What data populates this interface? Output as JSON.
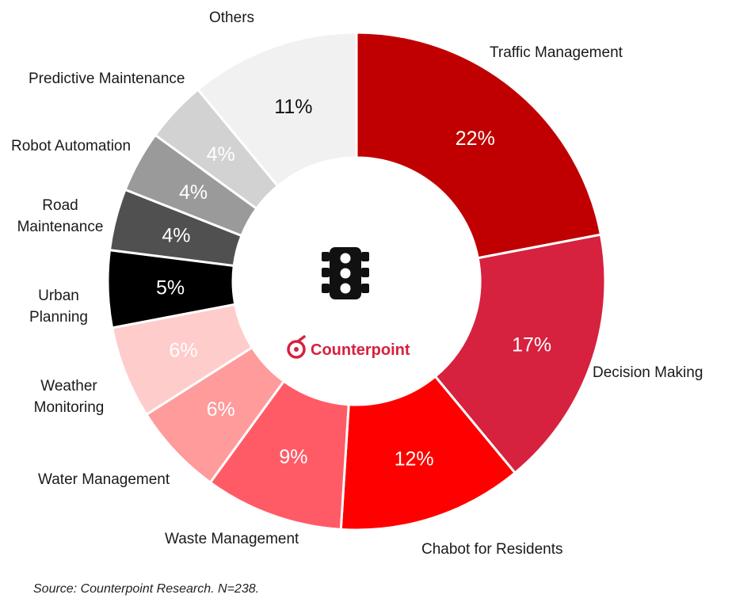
{
  "chart_data": {
    "type": "pie",
    "donut": true,
    "title": "",
    "center_icon": "traffic-light-icon",
    "categories": [
      "Traffic Management",
      "Decision Making",
      "Chabot for Residents",
      "Waste Management",
      "Water Management",
      "Weather Monitoring",
      "Urban Planning",
      "Road Maintenance",
      "Robot Automation",
      "Predictive Maintenance",
      "Others"
    ],
    "values": [
      22,
      17,
      12,
      9,
      6,
      6,
      5,
      4,
      4,
      4,
      11
    ],
    "value_labels": [
      "22%",
      "17%",
      "12%",
      "9%",
      "6%",
      "6%",
      "5%",
      "4%",
      "4%",
      "4%",
      "11%"
    ],
    "colors": [
      "#c00000",
      "#d6213f",
      "#ff0000",
      "#ff5b67",
      "#ff9b9b",
      "#ffcccc",
      "#000000",
      "#505050",
      "#9a9a9a",
      "#d2d2d2",
      "#f1f1f1"
    ],
    "label_colors": [
      "#ffffff",
      "#ffffff",
      "#ffffff",
      "#ffffff",
      "#ffffff",
      "#ffffff",
      "#ffffff",
      "#ffffff",
      "#ffffff",
      "#ffffff",
      "#111111"
    ],
    "category_label_lines": [
      [
        "Traffic Management"
      ],
      [
        "Decision Making"
      ],
      [
        "Chabot for Residents"
      ],
      [
        "Waste Management"
      ],
      [
        "Water Management"
      ],
      [
        "Weather",
        "Monitoring"
      ],
      [
        "Urban",
        "Planning"
      ],
      [
        "Road",
        "Maintenance"
      ],
      [
        "Robot Automation"
      ],
      [
        "Predictive Maintenance"
      ],
      [
        "Others"
      ]
    ]
  },
  "brand": {
    "name": "Counterpoint",
    "color": "#d6213f"
  },
  "source": "Source: Counterpoint Research. N=238."
}
